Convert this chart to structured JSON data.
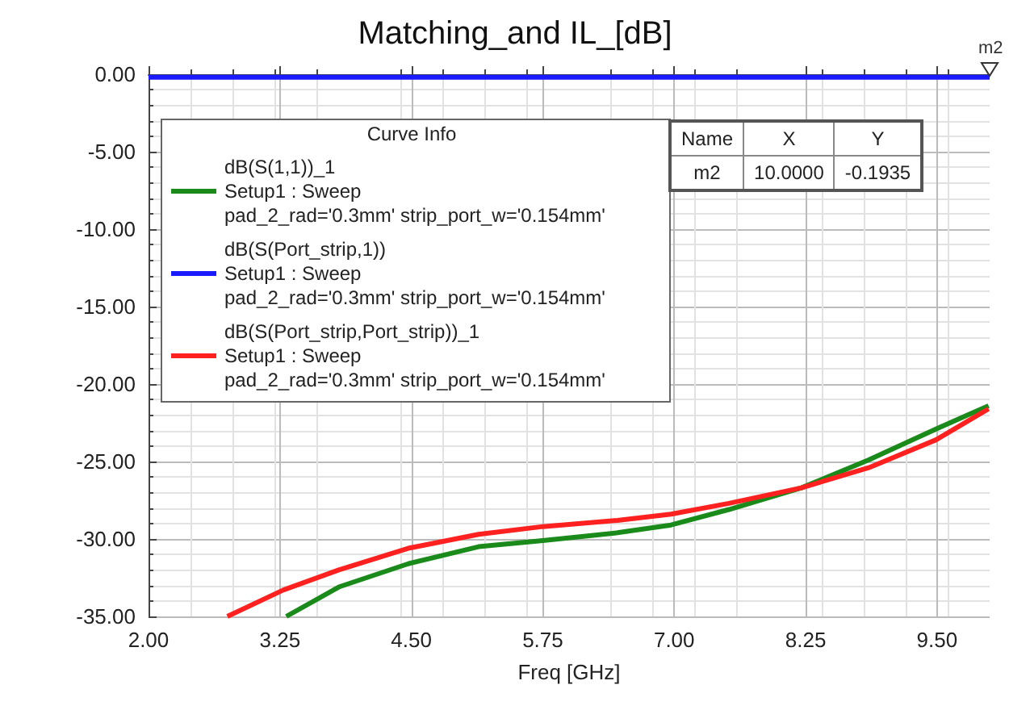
{
  "chart_data": {
    "type": "line",
    "title": "Matching_and IL_[dB]",
    "xlabel": "Freq [GHz]",
    "legend_title": "Curve Info",
    "xlim": [
      2,
      10
    ],
    "xticks": [
      {
        "value": 2,
        "label": "2.00"
      },
      {
        "value": 3.25,
        "label": "3.25"
      },
      {
        "value": 4.5,
        "label": "4.50"
      },
      {
        "value": 5.75,
        "label": "5.75"
      },
      {
        "value": 7,
        "label": "7.00"
      },
      {
        "value": 8.25,
        "label": "8.25"
      },
      {
        "value": 9.5,
        "label": "9.50"
      }
    ],
    "ylim": [
      -35,
      0
    ],
    "yticks": [
      {
        "value": -35,
        "label": "-35.00"
      },
      {
        "value": -30,
        "label": "-30.00"
      },
      {
        "value": -25,
        "label": "-25.00"
      },
      {
        "value": -20,
        "label": "-20.00"
      },
      {
        "value": -15,
        "label": "-15.00"
      },
      {
        "value": -10,
        "label": "-10.00"
      },
      {
        "value": -5,
        "label": "-5.00"
      },
      {
        "value": 0,
        "label": "0.00"
      }
    ],
    "grid": true,
    "legend": "top left",
    "marker": "none",
    "line_style": "solid",
    "series": [
      {
        "name": "dB(S(1,1))_1\nSetup1 : Sweep\npad_2_rad='0.3mm' strip_port_w='0.154mm'",
        "color": "#1a8a1a",
        "x": [
          3.31,
          3.81,
          4.47,
          5.14,
          5.75,
          6.46,
          6.97,
          7.52,
          8.21,
          8.85,
          9.49,
          9.99
        ],
        "values": [
          -35,
          -33.1,
          -31.6,
          -30.5,
          -30.1,
          -29.6,
          -29.1,
          -28.1,
          -26.7,
          -24.9,
          -22.9,
          -21.4
        ]
      },
      {
        "name": "dB(S(Port_strip,1))\nSetup1 : Sweep\npad_2_rad='0.3mm' strip_port_w='0.154mm'",
        "color": "#1a1aff",
        "x": [
          2,
          10
        ],
        "values": [
          -0.19,
          -0.19
        ]
      },
      {
        "name": "dB(S(Port_strip,Port_strip))_1\nSetup1 : Sweep\npad_2_rad='0.3mm' strip_port_w='0.154mm'",
        "color": "#ff2020",
        "x": [
          2.75,
          3.28,
          3.81,
          4.47,
          5.14,
          5.75,
          6.46,
          6.97,
          7.52,
          8.21,
          8.85,
          9.49,
          9.99
        ],
        "values": [
          -35,
          -33.3,
          -32.0,
          -30.6,
          -29.7,
          -29.2,
          -28.8,
          -28.4,
          -27.7,
          -26.7,
          -25.4,
          -23.6,
          -21.6
        ]
      }
    ],
    "annotations": [
      {
        "text": "m2",
        "x": 10,
        "y": -0.19
      },
      "Name",
      "X",
      "Y",
      "m2",
      "10.0000",
      "-0.1935"
    ]
  }
}
